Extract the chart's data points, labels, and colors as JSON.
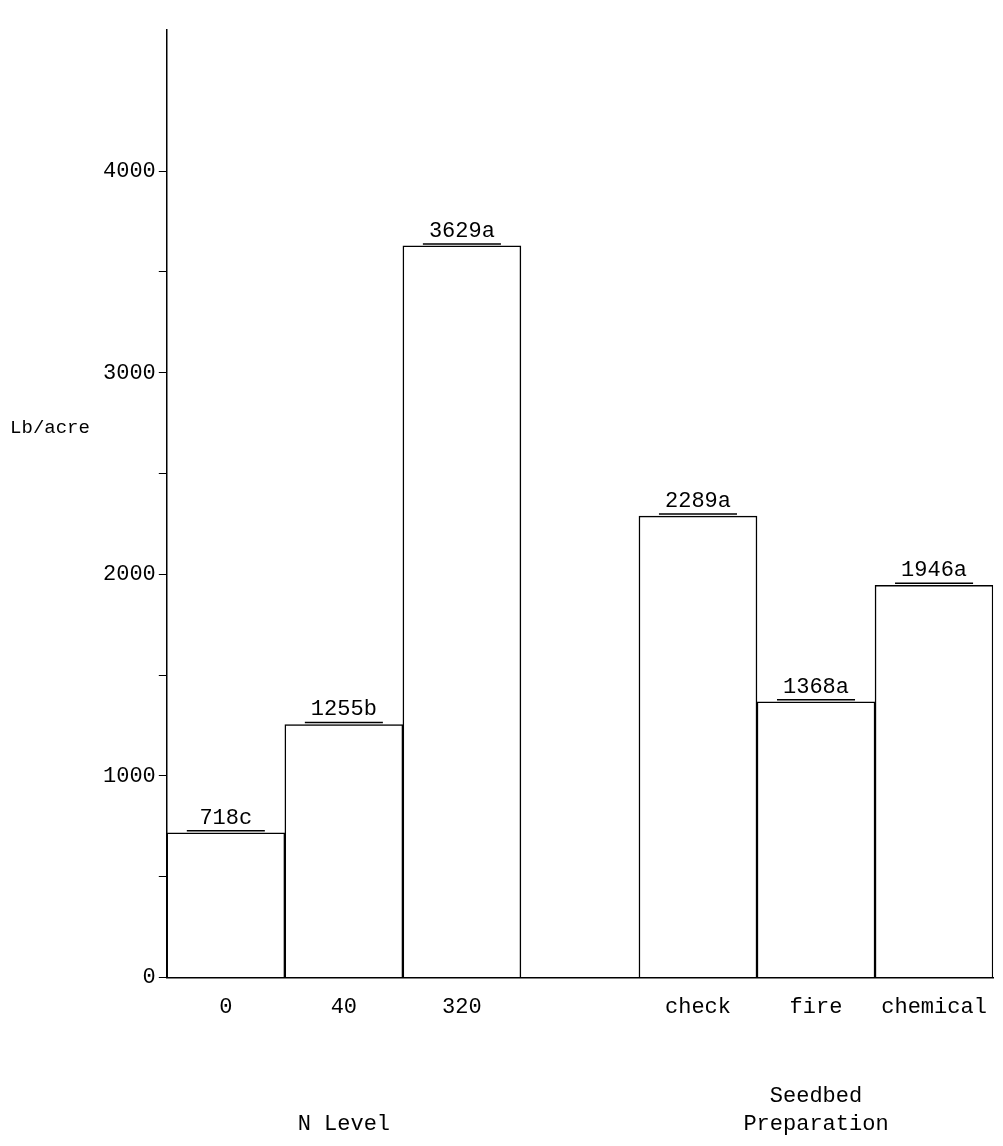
{
  "chart_data": {
    "type": "bar",
    "categories": [
      "0",
      "40",
      "320",
      null,
      "check",
      "fire",
      "chemical"
    ],
    "values": [
      718,
      1255,
      3629,
      null,
      2289,
      1368,
      1946
    ],
    "value_labels": [
      "718c",
      "1255b",
      "3629a",
      null,
      "2289a",
      "1368a",
      "1946a"
    ],
    "color": "#ffffff",
    "ylabel": "Lb/acre",
    "ylim": [
      0,
      4700
    ],
    "yticks": [
      0,
      {
        "value": 500,
        "label": null
      },
      1000,
      {
        "value": 1500,
        "label": null
      },
      2000,
      {
        "value": 2500,
        "label": null
      },
      3000,
      {
        "value": 3500,
        "label": null
      },
      4000
    ],
    "annotations": [
      "N Level",
      "Seedbed Preparation"
    ],
    "grid": false,
    "legend": false
  }
}
